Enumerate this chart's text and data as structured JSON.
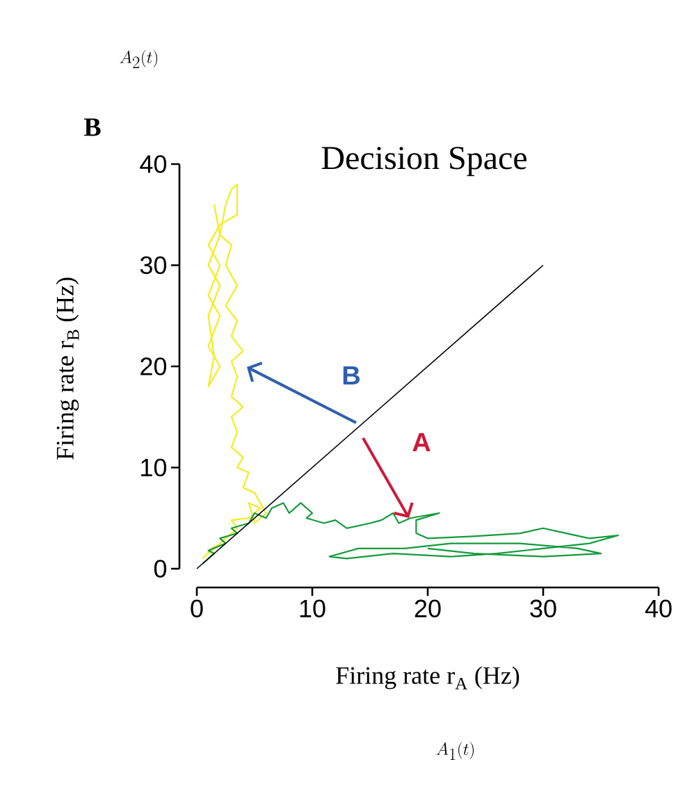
{
  "chart_data": {
    "type": "line",
    "title": "Decision Space",
    "xlabel": "Firing rate r$_{A}$ (Hz)",
    "ylabel": "Firing rate r$_{B}$ (Hz)",
    "xlim": [
      0,
      40
    ],
    "ylim": [
      0,
      40
    ],
    "xticks": [
      0,
      10,
      20,
      30,
      40
    ],
    "yticks": [
      0,
      10,
      20,
      30,
      40
    ],
    "grid": false,
    "series": [
      {
        "color": "#f5ec1e",
        "x": [
          0.5,
          1.5,
          1,
          2.5,
          2,
          3.5,
          3,
          4.5,
          5.5,
          4.5,
          5,
          6,
          5,
          4,
          4.5,
          3.5,
          4,
          3,
          3.5,
          3,
          4,
          3,
          3.5,
          3,
          4,
          3,
          3.5,
          2.5,
          3.5,
          2.5,
          3,
          2,
          2.5,
          3,
          3.5,
          3.5,
          2,
          1,
          2,
          1,
          2,
          1,
          2,
          1,
          1.5,
          1,
          2,
          1,
          2,
          1.5
        ],
        "values": [
          1,
          2.2,
          1.5,
          3,
          2.5,
          4,
          4.8,
          5,
          6,
          6.5,
          4.5,
          5.5,
          7.5,
          8,
          9.5,
          10,
          11,
          12,
          13.5,
          15,
          16,
          17,
          19,
          20.5,
          21.5,
          23,
          24.5,
          26,
          28,
          30,
          32,
          33,
          36,
          37.5,
          38,
          35,
          34,
          32,
          30,
          27,
          25,
          22,
          20,
          18,
          21,
          25,
          28,
          30,
          33,
          36
        ]
      },
      {
        "color": "#149a3c",
        "x": [
          0.5,
          1.5,
          1,
          2.5,
          2,
          3.5,
          3,
          4.5,
          5,
          6,
          6.5,
          7.5,
          8,
          9,
          10,
          9.5,
          11,
          12,
          13,
          15,
          16,
          17,
          17.5,
          18.5,
          21,
          19,
          19,
          20,
          24,
          28,
          30,
          32,
          34,
          36.5,
          34,
          30,
          26,
          22,
          17,
          13,
          11.5,
          14,
          18,
          22,
          28,
          33,
          35,
          30,
          24,
          20
        ],
        "values": [
          0.5,
          1.5,
          1.8,
          2.5,
          3,
          3.5,
          4,
          4.5,
          5.5,
          5,
          6,
          6.5,
          5.5,
          6.5,
          5.5,
          5,
          4.5,
          4.8,
          4,
          4.5,
          4.8,
          5.5,
          4.5,
          5,
          5.5,
          4.8,
          3.5,
          3,
          3.2,
          3.5,
          4,
          3.5,
          3,
          3.3,
          2.5,
          2,
          1.5,
          1.2,
          1.5,
          1,
          1.2,
          2,
          2,
          2.5,
          2.5,
          2,
          1.5,
          1.2,
          1.5,
          2
        ]
      },
      {
        "color": "#000000",
        "x": [
          0,
          30
        ],
        "values": [
          0,
          30
        ]
      }
    ],
    "annotations": [
      "B",
      "A",
      "B",
      "A_2(t)",
      "A_1(t)"
    ]
  }
}
